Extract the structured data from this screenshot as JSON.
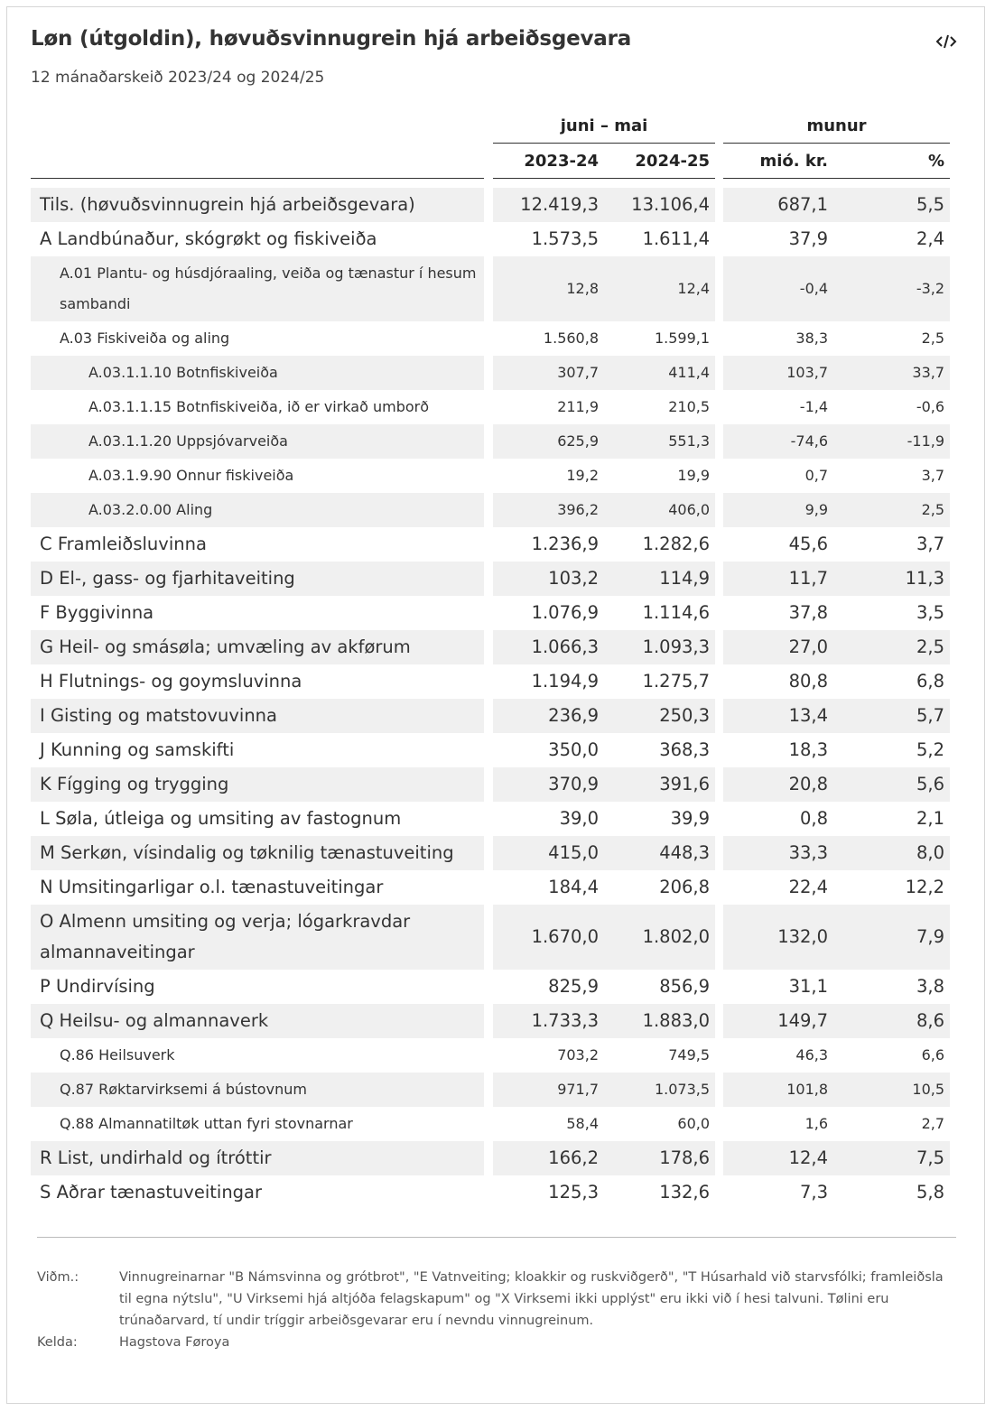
{
  "header": {
    "title": "Løn (útgoldin), høvuðsvinnugrein hjá arbeiðsgevara",
    "subtitle": "12 mánaðarskeið 2023/24 og 2024/25"
  },
  "table": {
    "group_headers": [
      "juni – mai",
      "munur"
    ],
    "columns": [
      "2023-24",
      "2024-25",
      "mió. kr.",
      "%"
    ],
    "rows": [
      {
        "label": "Tils. (høvuðsvinnugrein hjá arbeiðsgevara)",
        "level": 0,
        "values": [
          "12.419,3",
          "13.106,4",
          "687,1",
          "5,5"
        ]
      },
      {
        "label": "A Landbúnaður, skógrøkt og fiskiveiða",
        "level": 0,
        "values": [
          "1.573,5",
          "1.611,4",
          "37,9",
          "2,4"
        ]
      },
      {
        "label": "A.01 Plantu- og húsdjóraaling, veiða og tænastur í hesum sambandi",
        "level": 1,
        "values": [
          "12,8",
          "12,4",
          "-0,4",
          "-3,2"
        ]
      },
      {
        "label": "A.03 Fiskiveiða og aling",
        "level": 1,
        "values": [
          "1.560,8",
          "1.599,1",
          "38,3",
          "2,5"
        ]
      },
      {
        "label": "A.03.1.1.10 Botnfiskiveiða",
        "level": 2,
        "values": [
          "307,7",
          "411,4",
          "103,7",
          "33,7"
        ]
      },
      {
        "label": "A.03.1.1.15 Botnfiskiveiða, ið er virkað umborð",
        "level": 2,
        "values": [
          "211,9",
          "210,5",
          "-1,4",
          "-0,6"
        ]
      },
      {
        "label": "A.03.1.1.20 Uppsjóvarveiða",
        "level": 2,
        "values": [
          "625,9",
          "551,3",
          "-74,6",
          "-11,9"
        ]
      },
      {
        "label": "A.03.1.9.90 Onnur fiskiveiða",
        "level": 2,
        "values": [
          "19,2",
          "19,9",
          "0,7",
          "3,7"
        ]
      },
      {
        "label": "A.03.2.0.00 Aling",
        "level": 2,
        "values": [
          "396,2",
          "406,0",
          "9,9",
          "2,5"
        ]
      },
      {
        "label": "C Framleiðsluvinna",
        "level": 0,
        "values": [
          "1.236,9",
          "1.282,6",
          "45,6",
          "3,7"
        ]
      },
      {
        "label": "D El-, gass- og fjarhitaveiting",
        "level": 0,
        "values": [
          "103,2",
          "114,9",
          "11,7",
          "11,3"
        ]
      },
      {
        "label": "F Byggivinna",
        "level": 0,
        "values": [
          "1.076,9",
          "1.114,6",
          "37,8",
          "3,5"
        ]
      },
      {
        "label": "G Heil- og smásøla; umvæling av akførum",
        "level": 0,
        "values": [
          "1.066,3",
          "1.093,3",
          "27,0",
          "2,5"
        ]
      },
      {
        "label": "H Flutnings- og goymsluvinna",
        "level": 0,
        "values": [
          "1.194,9",
          "1.275,7",
          "80,8",
          "6,8"
        ]
      },
      {
        "label": "I Gisting og matstovuvinna",
        "level": 0,
        "values": [
          "236,9",
          "250,3",
          "13,4",
          "5,7"
        ]
      },
      {
        "label": "J Kunning og samskifti",
        "level": 0,
        "values": [
          "350,0",
          "368,3",
          "18,3",
          "5,2"
        ]
      },
      {
        "label": "K Fígging og trygging",
        "level": 0,
        "values": [
          "370,9",
          "391,6",
          "20,8",
          "5,6"
        ]
      },
      {
        "label": "L Søla, útleiga og umsiting av fastognum",
        "level": 0,
        "values": [
          "39,0",
          "39,9",
          "0,8",
          "2,1"
        ]
      },
      {
        "label": "M Serkøn, vísindalig og tøknilig tænastuveiting",
        "level": 0,
        "values": [
          "415,0",
          "448,3",
          "33,3",
          "8,0"
        ]
      },
      {
        "label": "N Umsitingarligar o.l. tænastuveitingar",
        "level": 0,
        "values": [
          "184,4",
          "206,8",
          "22,4",
          "12,2"
        ]
      },
      {
        "label": "O Almenn umsiting og verja; lógarkravdar almannaveitingar",
        "level": 0,
        "values": [
          "1.670,0",
          "1.802,0",
          "132,0",
          "7,9"
        ]
      },
      {
        "label": "P Undirvísing",
        "level": 0,
        "values": [
          "825,9",
          "856,9",
          "31,1",
          "3,8"
        ]
      },
      {
        "label": "Q Heilsu- og almannaverk",
        "level": 0,
        "values": [
          "1.733,3",
          "1.883,0",
          "149,7",
          "8,6"
        ]
      },
      {
        "label": "Q.86 Heilsuverk",
        "level": 1,
        "values": [
          "703,2",
          "749,5",
          "46,3",
          "6,6"
        ]
      },
      {
        "label": "Q.87 Røktarvirksemi á bústovnum",
        "level": 1,
        "values": [
          "971,7",
          "1.073,5",
          "101,8",
          "10,5"
        ]
      },
      {
        "label": "Q.88 Almannatiltøk uttan fyri stovnarnar",
        "level": 1,
        "values": [
          "58,4",
          "60,0",
          "1,6",
          "2,7"
        ]
      },
      {
        "label": "R List, undirhald og ítróttir",
        "level": 0,
        "values": [
          "166,2",
          "178,6",
          "12,4",
          "7,5"
        ]
      },
      {
        "label": "S Aðrar tænastuveitingar",
        "level": 0,
        "values": [
          "125,3",
          "132,6",
          "7,3",
          "5,8"
        ]
      }
    ]
  },
  "notes": [
    {
      "label": "Viðm.:",
      "text": "Vinnugreinarnar \"B Námsvinna og grótbrot\", \"E Vatnveiting; kloakkir og ruskviðgerð\", \"T Húsarhald við starvsfólki; framleiðsla til egna nýtslu\", \"U Virksemi hjá altjóða felagskapum\" og \"X Virksemi ikki upplýst\" eru ikki við í hesi talvuni. Tølini eru trúnaðarvard, tí undir tríggir arbeiðsgevarar eru í nevndu vinnugreinum."
    },
    {
      "label": "Kelda:",
      "text": "Hagstova Føroya"
    }
  ]
}
